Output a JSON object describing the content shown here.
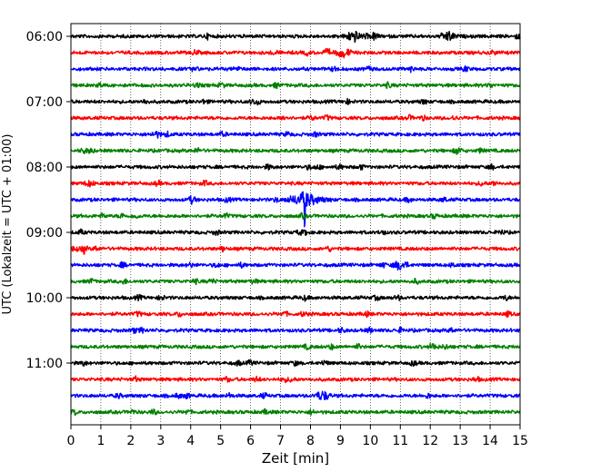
{
  "chart_data": {
    "type": "line",
    "subtype": "helicorder (seismogram drum plot)",
    "xlabel": "Zeit  [min]",
    "ylabel": "UTC (Lokalzeit = UTC + 01:00)",
    "xlim": [
      0,
      15
    ],
    "x_ticks": [
      "0",
      "1",
      "2",
      "3",
      "4",
      "5",
      "6",
      "7",
      "8",
      "9",
      "10",
      "11",
      "12",
      "13",
      "14",
      "15"
    ],
    "y_tick_labels": [
      "06:00",
      "07:00",
      "08:00",
      "09:00",
      "10:00",
      "11:00"
    ],
    "vertical_grid": "dotted at each minute",
    "line_start_times": [
      "06:00",
      "06:15",
      "06:30",
      "06:45",
      "07:00",
      "07:15",
      "07:30",
      "07:45",
      "08:00",
      "08:15",
      "08:30",
      "08:45",
      "09:00",
      "09:15",
      "09:30",
      "09:45",
      "10:00",
      "10:15",
      "10:30",
      "10:45",
      "11:00",
      "11:15",
      "11:30",
      "11:45"
    ],
    "trace_colors_cycle": [
      "#000000",
      "#ff0000",
      "#0000ff",
      "#008000"
    ],
    "event": {
      "line_start": "08:30",
      "time_min": 7.8,
      "description": "local earthquake signal"
    },
    "bursts": [
      {
        "line_start": "06:00",
        "time_min": 9.4
      },
      {
        "line_start": "06:00",
        "time_min": 12.6
      },
      {
        "line_start": "09:30",
        "time_min": 11.0
      },
      {
        "line_start": "11:30",
        "time_min": 8.4
      },
      {
        "line_start": "06:15",
        "time_min": 9.1
      }
    ]
  }
}
